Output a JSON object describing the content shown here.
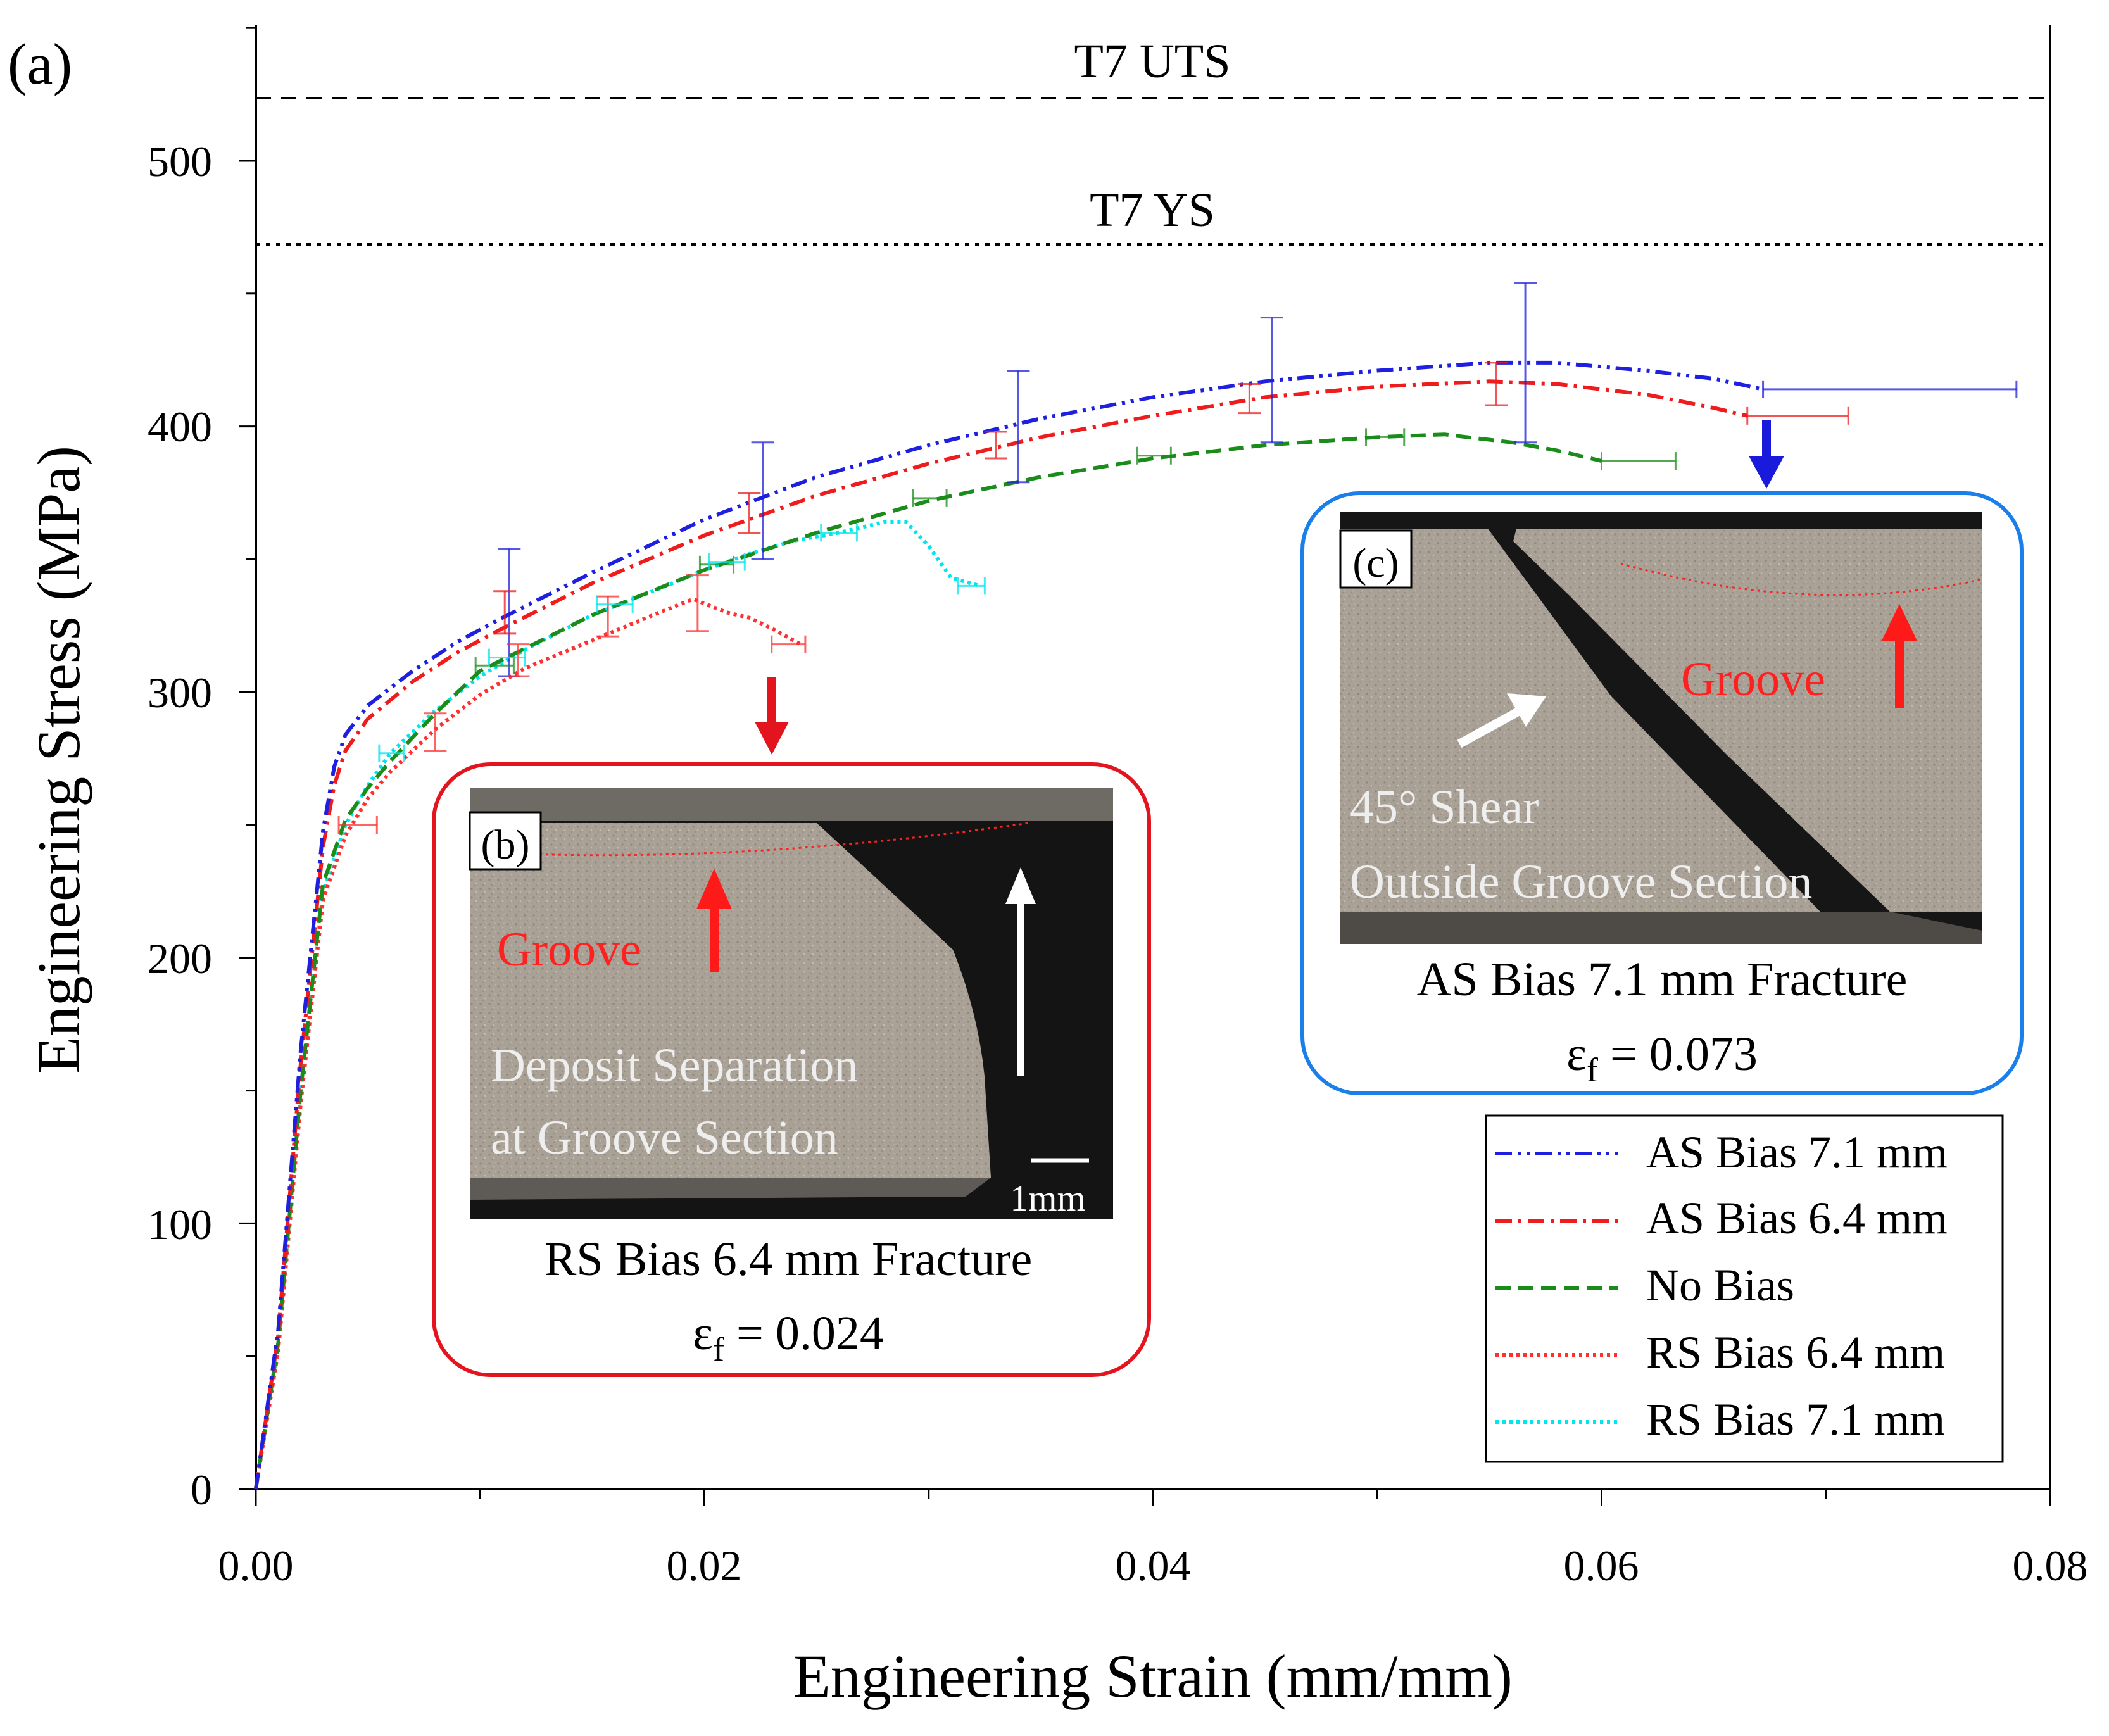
{
  "panel_label": "(a)",
  "chart_data": {
    "type": "line",
    "xlabel": "Engineering Strain (mm/mm)",
    "ylabel": "Engineering Stress (MPa)",
    "xlim": [
      0,
      0.08
    ],
    "ylim": [
      0,
      550
    ],
    "x_ticks": [
      0.0,
      0.02,
      0.04,
      0.06,
      0.08
    ],
    "x_tick_labels": [
      "0.00",
      "0.02",
      "0.04",
      "0.06",
      "0.08"
    ],
    "y_ticks": [
      0,
      100,
      200,
      300,
      400,
      500
    ],
    "y_tick_labels": [
      "0",
      "100",
      "200",
      "300",
      "400",
      "500"
    ],
    "reference_lines": [
      {
        "label": "T7 UTS",
        "y": 524,
        "style": "dashed"
      },
      {
        "label": "T7 YS",
        "y": 469,
        "style": "dotted"
      }
    ],
    "series": [
      {
        "name": "AS Bias 7.1 mm",
        "color": "#1f1fe0",
        "style": "dash-dot-dot",
        "points": [
          [
            0,
            0
          ],
          [
            0.001,
            60
          ],
          [
            0.002,
            165
          ],
          [
            0.003,
            248
          ],
          [
            0.0035,
            272
          ],
          [
            0.004,
            284
          ],
          [
            0.005,
            295
          ],
          [
            0.007,
            308
          ],
          [
            0.009,
            319
          ],
          [
            0.011,
            328
          ],
          [
            0.015,
            345
          ],
          [
            0.02,
            365
          ],
          [
            0.025,
            381
          ],
          [
            0.03,
            393
          ],
          [
            0.035,
            403
          ],
          [
            0.04,
            411
          ],
          [
            0.045,
            417
          ],
          [
            0.05,
            421
          ],
          [
            0.055,
            424
          ],
          [
            0.058,
            424
          ],
          [
            0.062,
            421
          ],
          [
            0.065,
            418
          ],
          [
            0.0672,
            414
          ]
        ],
        "error_bars": [
          {
            "x": 0.0113,
            "y": 330,
            "ylo": 306,
            "yhi": 354
          },
          {
            "x": 0.0226,
            "y": 372,
            "ylo": 350,
            "yhi": 394
          },
          {
            "x": 0.034,
            "y": 400,
            "ylo": 379,
            "yhi": 421
          },
          {
            "x": 0.0453,
            "y": 417,
            "ylo": 394,
            "yhi": 441
          },
          {
            "x": 0.0566,
            "y": 424,
            "ylo": 394,
            "yhi": 454
          },
          {
            "x": 0.0672,
            "y": 414,
            "xlo": 0.0672,
            "xhi": 0.0785
          }
        ]
      },
      {
        "name": "AS Bias 6.4 mm",
        "color": "#ee1c1c",
        "style": "dash-dot",
        "points": [
          [
            0,
            0
          ],
          [
            0.001,
            58
          ],
          [
            0.002,
            160
          ],
          [
            0.003,
            242
          ],
          [
            0.0035,
            265
          ],
          [
            0.004,
            278
          ],
          [
            0.005,
            290
          ],
          [
            0.007,
            304
          ],
          [
            0.009,
            315
          ],
          [
            0.011,
            324
          ],
          [
            0.015,
            341
          ],
          [
            0.02,
            359
          ],
          [
            0.025,
            374
          ],
          [
            0.03,
            386
          ],
          [
            0.035,
            396
          ],
          [
            0.04,
            404
          ],
          [
            0.045,
            411
          ],
          [
            0.05,
            415
          ],
          [
            0.055,
            417
          ],
          [
            0.058,
            416
          ],
          [
            0.062,
            412
          ],
          [
            0.065,
            407
          ],
          [
            0.0665,
            404
          ]
        ],
        "error_bars": [
          {
            "x": 0.0111,
            "y": 330,
            "ylo": 322,
            "yhi": 338
          },
          {
            "x": 0.022,
            "y": 367,
            "ylo": 360,
            "yhi": 375
          },
          {
            "x": 0.033,
            "y": 393,
            "ylo": 388,
            "yhi": 398
          },
          {
            "x": 0.0443,
            "y": 410,
            "ylo": 405,
            "yhi": 416
          },
          {
            "x": 0.0553,
            "y": 416,
            "ylo": 408,
            "yhi": 424
          },
          {
            "x": 0.0665,
            "y": 404,
            "xlo": 0.0665,
            "xhi": 0.071
          }
        ]
      },
      {
        "name": "No Bias",
        "color": "#1a8c1a",
        "style": "dashed",
        "points": [
          [
            0,
            0
          ],
          [
            0.001,
            55
          ],
          [
            0.002,
            150
          ],
          [
            0.003,
            228
          ],
          [
            0.004,
            252
          ],
          [
            0.005,
            264
          ],
          [
            0.006,
            274
          ],
          [
            0.008,
            292
          ],
          [
            0.01,
            308
          ],
          [
            0.015,
            329
          ],
          [
            0.02,
            346
          ],
          [
            0.025,
            360
          ],
          [
            0.03,
            372
          ],
          [
            0.035,
            381
          ],
          [
            0.04,
            388
          ],
          [
            0.045,
            393
          ],
          [
            0.05,
            396
          ],
          [
            0.053,
            397
          ],
          [
            0.056,
            394
          ],
          [
            0.058,
            391
          ],
          [
            0.06,
            387
          ]
        ],
        "error_bars": [
          {
            "x": 0.0103,
            "y": 310,
            "xlo": 0.0098,
            "xhi": 0.0115
          },
          {
            "x": 0.0205,
            "y": 348,
            "xlo": 0.0198,
            "xhi": 0.0213
          },
          {
            "x": 0.03,
            "y": 373,
            "xlo": 0.0293,
            "xhi": 0.0308
          },
          {
            "x": 0.04,
            "y": 389,
            "xlo": 0.0393,
            "xhi": 0.0408
          },
          {
            "x": 0.0502,
            "y": 396,
            "xlo": 0.0495,
            "xhi": 0.0512
          },
          {
            "x": 0.06,
            "y": 387,
            "xlo": 0.06,
            "xhi": 0.0633
          }
        ]
      },
      {
        "name": "RS Bias 6.4 mm",
        "color": "#ff3030",
        "style": "dotted",
        "points": [
          [
            0,
            0
          ],
          [
            0.001,
            52
          ],
          [
            0.002,
            145
          ],
          [
            0.003,
            222
          ],
          [
            0.004,
            246
          ],
          [
            0.005,
            260
          ],
          [
            0.006,
            270
          ],
          [
            0.008,
            286
          ],
          [
            0.01,
            299
          ],
          [
            0.012,
            309
          ],
          [
            0.014,
            316
          ],
          [
            0.016,
            323
          ],
          [
            0.018,
            330
          ],
          [
            0.0195,
            335
          ],
          [
            0.021,
            330
          ],
          [
            0.022,
            328
          ],
          [
            0.023,
            324
          ],
          [
            0.0243,
            318
          ]
        ],
        "error_bars": [
          {
            "x": 0.0045,
            "y": 250,
            "xlo": 0.0037,
            "xhi": 0.0054
          },
          {
            "x": 0.008,
            "y": 285,
            "ylo": 278,
            "yhi": 292
          },
          {
            "x": 0.0117,
            "y": 311,
            "ylo": 306,
            "yhi": 318
          },
          {
            "x": 0.0157,
            "y": 328,
            "ylo": 321,
            "yhi": 336
          },
          {
            "x": 0.0197,
            "y": 332,
            "ylo": 323,
            "yhi": 344
          },
          {
            "x": 0.0243,
            "y": 318,
            "xlo": 0.023,
            "xhi": 0.0245
          }
        ]
      },
      {
        "name": "RS Bias 7.1 mm",
        "color": "#00e5ee",
        "style": "dotted",
        "points": [
          [
            0,
            0
          ],
          [
            0.001,
            54
          ],
          [
            0.002,
            148
          ],
          [
            0.003,
            225
          ],
          [
            0.004,
            250
          ],
          [
            0.005,
            265
          ],
          [
            0.006,
            277
          ],
          [
            0.008,
            293
          ],
          [
            0.01,
            306
          ],
          [
            0.012,
            316
          ],
          [
            0.015,
            329
          ],
          [
            0.018,
            339
          ],
          [
            0.02,
            346
          ],
          [
            0.022,
            352
          ],
          [
            0.024,
            357
          ],
          [
            0.026,
            360
          ],
          [
            0.028,
            364
          ],
          [
            0.029,
            364
          ],
          [
            0.03,
            355
          ],
          [
            0.031,
            343
          ],
          [
            0.0323,
            340
          ]
        ],
        "error_bars": [
          {
            "x": 0.006,
            "y": 277,
            "xlo": 0.0055,
            "xhi": 0.0066
          },
          {
            "x": 0.0112,
            "y": 313,
            "xlo": 0.0104,
            "xhi": 0.012
          },
          {
            "x": 0.016,
            "y": 333,
            "xlo": 0.0152,
            "xhi": 0.0168
          },
          {
            "x": 0.021,
            "y": 349,
            "xlo": 0.0202,
            "xhi": 0.0218
          },
          {
            "x": 0.026,
            "y": 360,
            "xlo": 0.0252,
            "xhi": 0.0268
          },
          {
            "x": 0.0313,
            "y": 340,
            "xlo": 0.0313,
            "xhi": 0.0325
          }
        ]
      }
    ],
    "legend_position": "bottom-right",
    "annotations": [
      "T7 UTS",
      "T7 YS"
    ]
  },
  "inset_b": {
    "label": "(b)",
    "groove": "Groove",
    "note_line1": "Deposit Separation",
    "note_line2": "at Groove Section",
    "scale": "1mm",
    "caption": "RS Bias 6.4 mm Fracture",
    "strain_symbol": "ε",
    "strain_sub": "f",
    "strain_value": " = 0.024",
    "border_color": "#e4141e"
  },
  "inset_c": {
    "label": "(c)",
    "groove": "Groove",
    "note_line1": "45° Shear",
    "note_line2": "Outside Groove Section",
    "caption": "AS Bias 7.1 mm Fracture",
    "strain_symbol": "ε",
    "strain_sub": "f",
    "strain_value": " = 0.073",
    "border_color": "#1a7fe8"
  }
}
